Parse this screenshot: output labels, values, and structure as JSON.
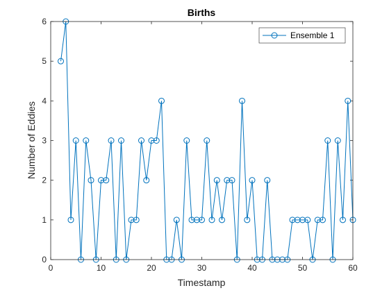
{
  "chart_data": {
    "type": "line",
    "title": "Births",
    "xlabel": "Timestamp",
    "ylabel": "Number of Eddies",
    "xlim": [
      0,
      60
    ],
    "ylim": [
      0,
      6
    ],
    "xticks": [
      0,
      10,
      20,
      30,
      40,
      50,
      60
    ],
    "yticks": [
      0,
      1,
      2,
      3,
      4,
      5,
      6
    ],
    "grid": false,
    "legend_position": "top-right",
    "marker": "circle",
    "series": [
      {
        "name": "Ensemble 1",
        "color": "#0072BD",
        "x": [
          2,
          3,
          4,
          5,
          6,
          7,
          8,
          9,
          10,
          11,
          12,
          13,
          14,
          15,
          16,
          17,
          18,
          19,
          20,
          21,
          22,
          23,
          24,
          25,
          26,
          27,
          28,
          29,
          30,
          31,
          32,
          33,
          34,
          35,
          36,
          37,
          38,
          39,
          40,
          41,
          42,
          43,
          44,
          45,
          46,
          47,
          48,
          49,
          50,
          51,
          52,
          53,
          54,
          55,
          56,
          57,
          58,
          59,
          60
        ],
        "y": [
          5,
          6,
          1,
          3,
          0,
          3,
          2,
          0,
          2,
          2,
          3,
          0,
          3,
          0,
          1,
          1,
          3,
          2,
          3,
          3,
          4,
          0,
          0,
          1,
          0,
          3,
          1,
          1,
          1,
          3,
          1,
          2,
          1,
          2,
          2,
          0,
          4,
          1,
          2,
          0,
          0,
          2,
          0,
          0,
          0,
          0,
          1,
          1,
          1,
          1,
          0,
          1,
          1,
          3,
          0,
          3,
          1,
          4,
          1
        ]
      }
    ]
  }
}
